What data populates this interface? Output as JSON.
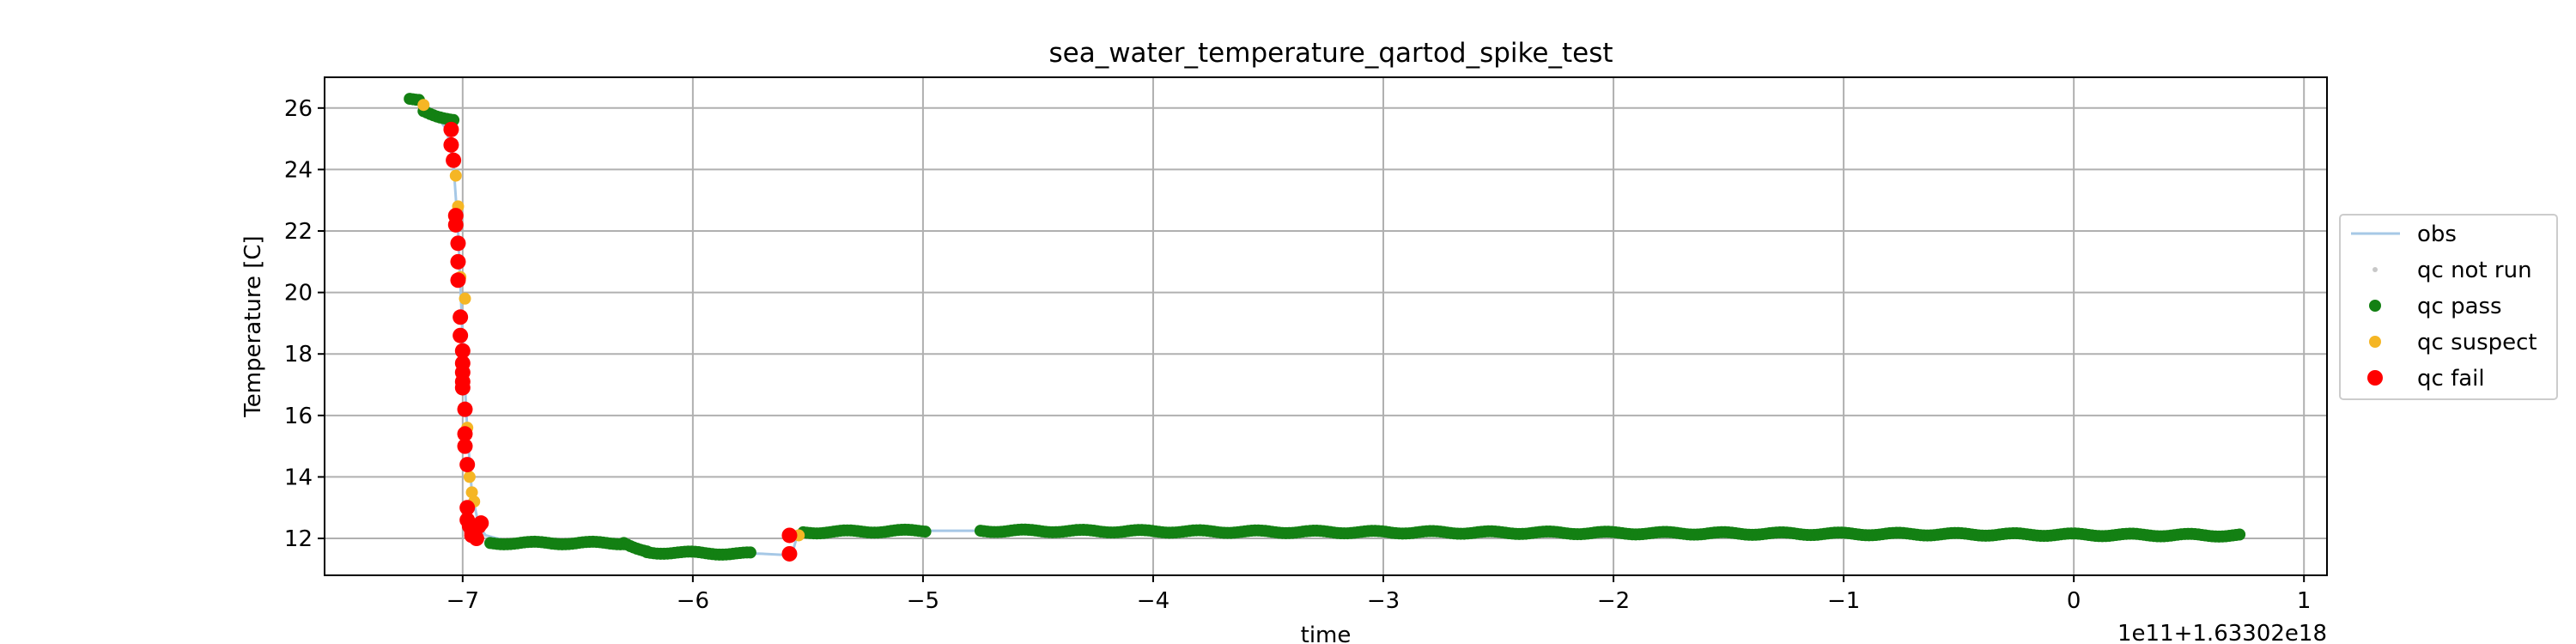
{
  "chart_data": {
    "type": "scatter",
    "title": "sea_water_temperature_qartod_spike_test",
    "xlabel": "time",
    "ylabel": "Temperature [C]",
    "offset_label": "1e11+1.63302e18",
    "xlim": [
      -7.6,
      1.1
    ],
    "ylim": [
      10.8,
      27.0
    ],
    "x_ticks": [
      -7,
      -6,
      -5,
      -4,
      -3,
      -2,
      -1,
      0,
      1
    ],
    "x_tick_labels": [
      "−7",
      "−6",
      "−5",
      "−4",
      "−3",
      "−2",
      "−1",
      "0",
      "1"
    ],
    "y_ticks": [
      12,
      14,
      16,
      18,
      20,
      22,
      24,
      26
    ],
    "y_tick_labels": [
      "12",
      "14",
      "16",
      "18",
      "20",
      "22",
      "24",
      "26"
    ],
    "grid": true,
    "legend_position": "outside-right",
    "colors": {
      "obs": "#a6c8e6",
      "qc_not_run": "#c8c8c8",
      "qc_pass": "#138013",
      "qc_suspect": "#f5b625",
      "qc_fail": "#ff0000",
      "grid": "#b0b0b0"
    },
    "series": [
      {
        "name": "obs",
        "kind": "line",
        "x": [
          -7.22,
          -7.17,
          -7.12,
          -7.07,
          -7.04,
          -7.02,
          -7.0,
          -6.98,
          -6.96,
          -6.93,
          -6.9,
          -6.8,
          -6.6,
          -6.3,
          -6.2,
          -6.0,
          -5.7,
          -5.57,
          -5.55,
          -5.5,
          -5.3,
          -5.0,
          -4.75,
          -4.5,
          -4.0,
          -3.5,
          -3.0,
          -2.5,
          -2.0,
          -1.5,
          -1.0,
          -0.5,
          0.0,
          0.3,
          0.5,
          0.72
        ],
        "y": [
          26.3,
          26.2,
          25.8,
          25.3,
          24.2,
          22.0,
          18.5,
          15.5,
          13.5,
          12.4,
          12.1,
          11.9,
          11.9,
          11.85,
          11.65,
          11.55,
          11.5,
          11.45,
          12.0,
          12.2,
          12.25,
          12.25,
          12.25,
          12.2,
          12.15,
          12.2,
          12.25,
          12.2,
          12.15,
          12.15,
          12.2,
          12.2,
          12.15,
          12.15,
          12.1,
          12.1
        ]
      },
      {
        "name": "qc not run",
        "kind": "points",
        "x": [],
        "y": []
      },
      {
        "name": "qc pass",
        "kind": "points",
        "segments": [
          {
            "x": [
              -7.23,
              -7.19
            ],
            "y": [
              26.3,
              26.3
            ]
          },
          {
            "x": [
              -7.17,
              -7.04
            ],
            "y": [
              25.9,
              25.6
            ]
          },
          {
            "x": [
              -6.88,
              -6.3
            ],
            "y": [
              11.85,
              11.85
            ]
          },
          {
            "x": [
              -6.3,
              -6.2
            ],
            "y": [
              11.85,
              11.6
            ]
          },
          {
            "x": [
              -6.2,
              -5.75
            ],
            "y": [
              11.55,
              11.5
            ]
          },
          {
            "x": [
              -5.52,
              -4.99
            ],
            "y": [
              12.2,
              12.25
            ]
          },
          {
            "x": [
              -4.75,
              0.72
            ],
            "y": [
              12.25,
              12.1
            ]
          }
        ]
      },
      {
        "name": "qc suspect",
        "kind": "points",
        "x": [
          -7.17,
          -7.03,
          -7.02,
          -7.01,
          -6.99,
          -6.98,
          -6.97,
          -6.96,
          -6.95,
          -5.54
        ],
        "y": [
          26.1,
          23.8,
          22.8,
          20.5,
          19.8,
          15.6,
          14.0,
          13.5,
          13.2,
          12.1
        ]
      },
      {
        "name": "qc fail",
        "kind": "points",
        "x": [
          -7.05,
          -7.05,
          -7.04,
          -7.03,
          -7.03,
          -7.02,
          -7.02,
          -7.02,
          -7.01,
          -7.01,
          -7.0,
          -7.0,
          -7.0,
          -7.0,
          -7.0,
          -6.99,
          -6.99,
          -6.99,
          -6.98,
          -6.98,
          -6.98,
          -6.97,
          -6.96,
          -6.96,
          -6.95,
          -6.94,
          -6.93,
          -6.92,
          -5.58,
          -5.58
        ],
        "y": [
          25.3,
          24.8,
          24.3,
          22.5,
          22.2,
          21.6,
          21.0,
          20.4,
          19.2,
          18.6,
          18.1,
          17.7,
          17.4,
          17.1,
          16.9,
          16.2,
          15.4,
          15.0,
          14.4,
          13.0,
          12.6,
          12.4,
          12.2,
          12.1,
          12.3,
          12.0,
          12.4,
          12.5,
          12.1,
          11.5
        ]
      }
    ]
  }
}
